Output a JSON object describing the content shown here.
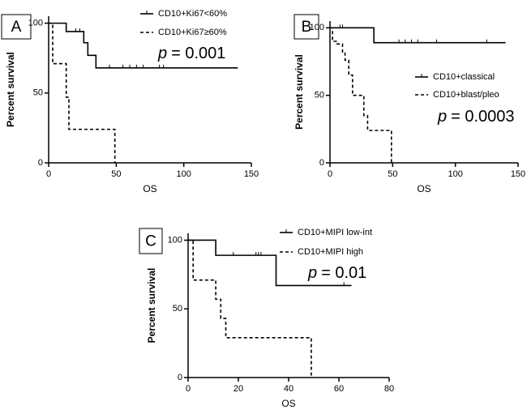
{
  "chart_data": [
    {
      "type": "step",
      "panel": "A",
      "xlabel": "OS",
      "ylabel": "Percent survival",
      "xlim": [
        0,
        150
      ],
      "ylim": [
        0,
        105
      ],
      "xticks": [
        0,
        50,
        100,
        150
      ],
      "yticks": [
        0,
        50,
        100
      ],
      "annotation_p": "p",
      "annotation": "= 0.001",
      "series": [
        {
          "name": "CD10+Ki67<60%",
          "dash": false,
          "x": [
            0,
            13,
            26,
            29,
            35,
            140
          ],
          "values": [
            100,
            94,
            86,
            77,
            68,
            68
          ],
          "censored_x": [
            20,
            23,
            45,
            55,
            60,
            65,
            70,
            82,
            85
          ],
          "censored_values": [
            94,
            94,
            68,
            68,
            68,
            68,
            68,
            68,
            68
          ]
        },
        {
          "name": "CD10+Ki67≥60%",
          "dash": true,
          "x": [
            0,
            3,
            13,
            15,
            49
          ],
          "values": [
            100,
            71,
            47,
            24,
            0
          ],
          "censored_x": [],
          "censored_values": []
        }
      ]
    },
    {
      "type": "step",
      "panel": "B",
      "xlabel": "OS",
      "ylabel": "Percent survival",
      "xlim": [
        0,
        150
      ],
      "ylim": [
        0,
        105
      ],
      "xticks": [
        0,
        50,
        100,
        150
      ],
      "yticks": [
        0,
        50,
        100
      ],
      "annotation_p": "p",
      "annotation": "= 0.0003",
      "series": [
        {
          "name": "CD10+classical",
          "dash": false,
          "x": [
            0,
            35,
            140
          ],
          "values": [
            100,
            89,
            89
          ],
          "censored_x": [
            8,
            10,
            55,
            60,
            65,
            70,
            85,
            125
          ],
          "censored_values": [
            100,
            100,
            89,
            89,
            89,
            89,
            89,
            89
          ]
        },
        {
          "name": "CD10+blast/pleo",
          "dash": true,
          "x": [
            0,
            2,
            5,
            10,
            12,
            15,
            18,
            27,
            30,
            49
          ],
          "values": [
            100,
            90,
            88,
            82,
            76,
            65,
            50,
            35,
            24,
            0
          ],
          "censored_x": [],
          "censored_values": []
        }
      ]
    },
    {
      "type": "step",
      "panel": "C",
      "xlabel": "OS",
      "ylabel": "Percent survival",
      "xlim": [
        0,
        80
      ],
      "ylim": [
        0,
        105
      ],
      "xticks": [
        0,
        20,
        40,
        60,
        80
      ],
      "yticks": [
        0,
        50,
        100
      ],
      "annotation_p": "p",
      "annotation": "= 0.01",
      "series": [
        {
          "name": "CD10+MIPI low-int",
          "dash": false,
          "x": [
            0,
            11,
            35,
            65
          ],
          "values": [
            100,
            89,
            67,
            67
          ],
          "censored_x": [
            18,
            27,
            28,
            29,
            62
          ],
          "censored_values": [
            89,
            89,
            89,
            89,
            67
          ]
        },
        {
          "name": "CD10+MIPI high",
          "dash": true,
          "x": [
            0,
            2,
            11,
            13,
            15,
            17,
            49
          ],
          "values": [
            100,
            71,
            57,
            43,
            29,
            29,
            0
          ],
          "censored_x": [],
          "censored_values": []
        }
      ]
    }
  ]
}
